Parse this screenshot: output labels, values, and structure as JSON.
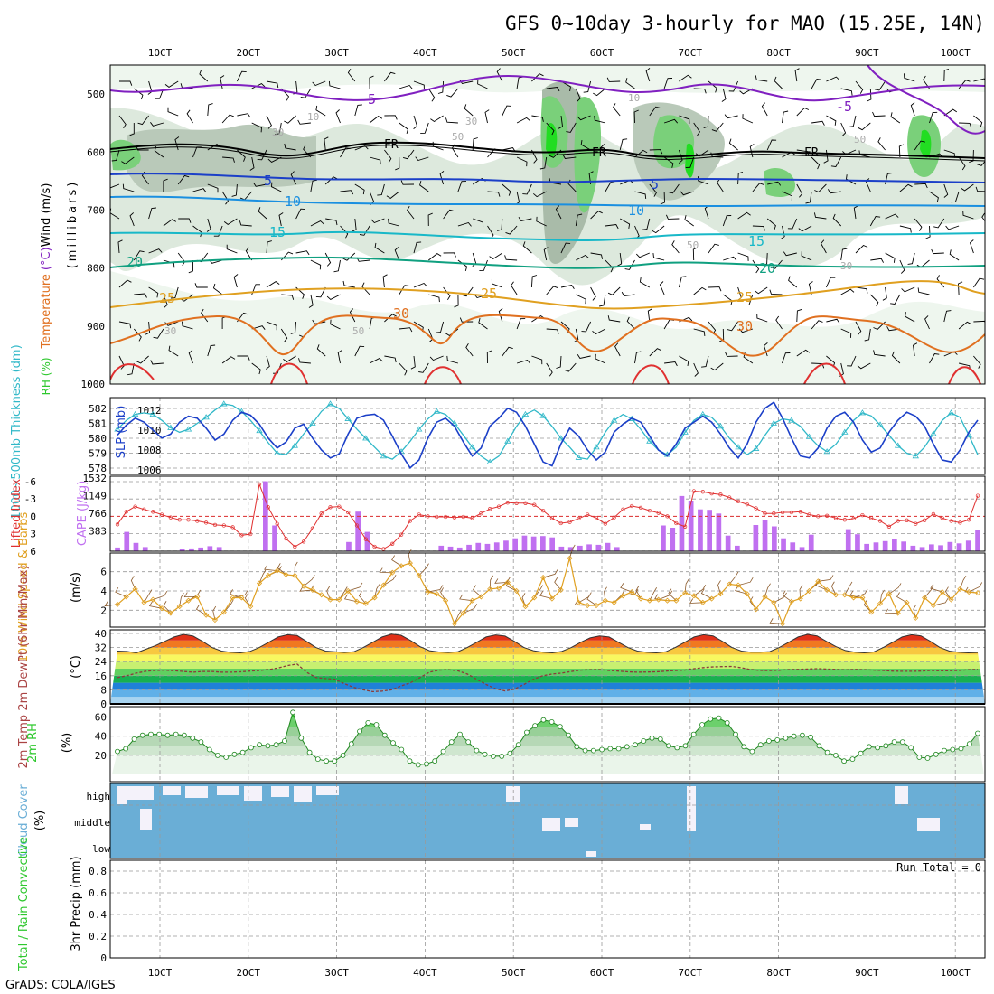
{
  "title": "GFS 0~10day 3-hourly for MAO (15.25E, 14N)",
  "credit": "GrADS: COLA/IGES",
  "time_axis": {
    "labels": [
      "1OCT",
      "2OCT",
      "3OCT",
      "4OCT",
      "5OCT",
      "6OCT",
      "7OCT",
      "8OCT",
      "9OCT",
      "10OCT"
    ]
  },
  "colors": {
    "temp_contour": "#e07020",
    "cold_contour": "#8020c0",
    "rh_shade": "#2ec82e",
    "cape": "#c070f0",
    "cloud": "#6aaed6",
    "slp": "#1b3fc8",
    "thickness": "#30b8c8"
  },
  "chart_data": [
    {
      "type": "heatmap",
      "panel": "upper-air",
      "ylabel": "(millibars)",
      "side_label_parts": [
        "RH (%)",
        "Temperature",
        "(°C)",
        "Wind (m/s)"
      ],
      "y_ticks": [
        "500",
        "600",
        "700",
        "800",
        "900",
        "1000"
      ],
      "ylim": [
        1000,
        450
      ],
      "temperature_contours": [
        {
          "label": "-5",
          "pressure": 510
        },
        {
          "label": "FR",
          "pressure": 610
        },
        {
          "label": "5",
          "pressure": 648
        },
        {
          "label": "10",
          "pressure": 688
        },
        {
          "label": "15",
          "pressure": 742
        },
        {
          "label": "20",
          "pressure": 790
        },
        {
          "label": "25",
          "pressure": 840
        },
        {
          "label": "30",
          "pressure": 885
        }
      ]
    },
    {
      "type": "line",
      "panel": "pressure",
      "ylabel_left": "1000~500mb Thickness (dm)",
      "ylabel_right": "SLP (mb)",
      "yticks_left": [
        "582",
        "581",
        "580",
        "579",
        "578"
      ],
      "yticks_right": [
        "1012",
        "1010",
        "1008",
        "1006"
      ],
      "series": [
        {
          "name": "SLP (mb)",
          "values": [
            1009.5,
            1010.5,
            1011.2,
            1010.8,
            1010,
            1009.2,
            1009.6,
            1010.8,
            1011.4,
            1011.2,
            1010.2,
            1009,
            1009.6,
            1011,
            1011.8,
            1011.5,
            1010.6,
            1009.2,
            1008.2,
            1008.8,
            1010.2,
            1010.6,
            1009.2,
            1008,
            1007.2,
            1007.6,
            1009.6,
            1011.2,
            1011.5,
            1011.6,
            1011,
            1009.4,
            1007.6,
            1006.2,
            1007,
            1009.2,
            1010.8,
            1011.2,
            1010.4,
            1008.8,
            1007.4,
            1008.2,
            1010.4,
            1011.2,
            1012.2,
            1011.8,
            1010.4,
            1008.6,
            1006.8,
            1006.4,
            1008.6,
            1010.2,
            1009.4,
            1008,
            1007,
            1007.8,
            1009.8,
            1010.6,
            1011.2,
            1010.8,
            1009.4,
            1008,
            1007.4,
            1008.6,
            1010.2,
            1010.8,
            1011.4,
            1010.8,
            1009.6,
            1008.2,
            1007.2,
            1008.6,
            1010.8,
            1012.2,
            1012.8,
            1011.2,
            1009.2,
            1007.4,
            1007.2,
            1008.2,
            1010.2,
            1011.4,
            1011.8,
            1010.8,
            1009,
            1007.8,
            1008.2,
            1009.8,
            1011,
            1011.8,
            1011.4,
            1010.4,
            1008.6,
            1007,
            1006.8,
            1008,
            1009.8,
            1011
          ]
        },
        {
          "name": "1000~500mb Thickness (dm)",
          "values": [
            580.6,
            581.2,
            581.6,
            581.7,
            581.6,
            581.2,
            580.7,
            580.4,
            580.6,
            581,
            581.4,
            581.9,
            582.3,
            582.2,
            581.8,
            581.2,
            580.5,
            579.7,
            579,
            578.9,
            579.5,
            580.3,
            581,
            581.8,
            582.3,
            582,
            581.3,
            580.6,
            580,
            579.4,
            578.8,
            578.6,
            579.1,
            579.8,
            580.6,
            581.3,
            581.8,
            581.6,
            581,
            580.2,
            579.4,
            578.8,
            578.4,
            578.8,
            579.8,
            580.8,
            581.6,
            581.9,
            581.5,
            580.8,
            580,
            579.4,
            578.7,
            578.6,
            579.4,
            580.4,
            581.2,
            581.6,
            581.3,
            580.6,
            579.8,
            579.2,
            578.9,
            579.4,
            580.4,
            581.2,
            581.6,
            581.4,
            580.8,
            580,
            579.4,
            578.9,
            579.3,
            580.2,
            581,
            581.3,
            581.2,
            580.8,
            580.1,
            579.5,
            579.1,
            579.6,
            580.4,
            581.2,
            581.7,
            581.5,
            580.9,
            580.2,
            579.5,
            579,
            578.8,
            579.4,
            580.3,
            581.2,
            581.7,
            581.4,
            580.2,
            578.9
          ]
        }
      ]
    },
    {
      "type": "bar",
      "panel": "instability",
      "ylabel_left": "Lifted Index",
      "ylabel_right": "CAPE (J/kg)",
      "yticks_left": [
        "-6",
        "-3",
        "0",
        "3",
        "6"
      ],
      "yticks_right": [
        "1532",
        "1149",
        "766",
        "383"
      ],
      "series": [
        {
          "name": "CAPE (J/kg)",
          "values": [
            80,
            420,
            180,
            90,
            0,
            0,
            0,
            40,
            60,
            80,
            110,
            90,
            0,
            0,
            0,
            0,
            1520,
            560,
            0,
            0,
            0,
            0,
            0,
            0,
            0,
            200,
            860,
            420,
            0,
            0,
            0,
            0,
            0,
            0,
            0,
            120,
            100,
            80,
            140,
            180,
            160,
            190,
            230,
            280,
            340,
            320,
            330,
            300,
            100,
            90,
            120,
            150,
            140,
            180,
            90,
            0,
            0,
            0,
            0,
            560,
            510,
            1200,
            1100,
            910,
            900,
            820,
            340,
            120,
            0,
            570,
            680,
            540,
            280,
            190,
            90,
            360,
            0,
            0,
            0,
            480,
            370,
            160,
            190,
            220,
            270,
            210,
            120,
            90,
            150,
            130,
            200,
            170,
            230,
            470
          ]
        },
        {
          "name": "Lifted Index",
          "values": [
            1.4,
            -0.8,
            -1.7,
            -1.2,
            -0.8,
            -0.3,
            0.2,
            0.6,
            0.6,
            0.8,
            1.1,
            1.5,
            1.6,
            1.9,
            3.3,
            3.1,
            -5.6,
            -1.6,
            1.3,
            3.9,
            5.3,
            4.4,
            2.1,
            -0.5,
            -1.6,
            -1.7,
            -0.7,
            1.6,
            4,
            5.3,
            5.7,
            4.8,
            3.2,
            0.8,
            -0.3,
            0,
            0.1,
            0.1,
            0.2,
            0.1,
            0.3,
            -0.5,
            -1.3,
            -1.7,
            -2.4,
            -2.3,
            -2.3,
            -2,
            -1,
            0.3,
            1.2,
            1,
            0.4,
            -0.3,
            0.3,
            1.3,
            0.2,
            -1.2,
            -1.8,
            -1.5,
            -1,
            -0.6,
            0,
            1.2,
            1.8,
            -4.4,
            -4.3,
            -4,
            -3.8,
            -3.3,
            -2.6,
            -2.1,
            -1.4,
            -0.5,
            -0.5,
            -0.7,
            -0.7,
            -0.8,
            -0.3,
            0,
            -0.1,
            0.3,
            0.6,
            0.4,
            -0.2,
            0.3,
            0.8,
            1.8,
            0.8,
            0.7,
            1.3,
            0.7,
            -0.4,
            0.3,
            0.8,
            1.1,
            0.6,
            -3.6
          ]
        }
      ]
    },
    {
      "type": "line",
      "panel": "wind10m",
      "ylabel_left": "10m Wind Speed & Barbs",
      "ylabel_right": "(m/s)",
      "yticks": [
        "6",
        "4",
        "2"
      ],
      "series": [
        {
          "name": "10m Wind Speed",
          "values": [
            2.6,
            3.4,
            4.2,
            2.8,
            3.1,
            2.2,
            1.7,
            2.4,
            3,
            3.4,
            1.5,
            1,
            1.8,
            3.3,
            3.3,
            2.4,
            4.8,
            5.6,
            6.1,
            5.7,
            5.6,
            4.5,
            4.1,
            3.6,
            3.1,
            3.1,
            4,
            2.9,
            2.7,
            3.3,
            4.6,
            5.9,
            6.6,
            6.9,
            5.6,
            3.9,
            3.7,
            3,
            0.6,
            1.7,
            3,
            3.4,
            4.2,
            4.3,
            4.9,
            4,
            2.4,
            3.3,
            5.4,
            3.2,
            4.1,
            7.4,
            2.8,
            2.5,
            2.5,
            3,
            2.8,
            3.5,
            3.9,
            3.2,
            3,
            3.1,
            3,
            3,
            3.8,
            3.5,
            2.8,
            3.2,
            3.7,
            4.7,
            4.6,
            3.7,
            2.1,
            3.4,
            2.8,
            0.6,
            2.9,
            3.2,
            4,
            5,
            4.1,
            3.6,
            3.6,
            3.3,
            3.3,
            1.8,
            2.7,
            3.7,
            1.7,
            2.8,
            1.2,
            3.3,
            2.5,
            3.9,
            3.1,
            4.2,
            3.9,
            3.8
          ]
        }
      ]
    },
    {
      "type": "area",
      "panel": "temperature2m",
      "ylabel_left": "2m Temp 2m DewPt (6hr Min/Max)",
      "ylabel_right": "(°C)",
      "yticks": [
        "40",
        "32",
        "24",
        "16",
        "8",
        "0"
      ],
      "series": [
        {
          "name": "2m Temp",
          "values": [
            30,
            29.8,
            29,
            31,
            33,
            35.5,
            38,
            39.5,
            38.5,
            35.5,
            32,
            30,
            29.3,
            29,
            29.8,
            32,
            35,
            38,
            39.3,
            38.8,
            35.5,
            32,
            30,
            29.6,
            29.2,
            29.6,
            32,
            35,
            38,
            39.6,
            39,
            36,
            32.5,
            30.2,
            29.5,
            29.2,
            29.6,
            32,
            35,
            38,
            39.2,
            38.5,
            35.5,
            32,
            30.2,
            29.4,
            29,
            29.8,
            32,
            35,
            37.5,
            38.6,
            38,
            35,
            32,
            30,
            29.3,
            29,
            29.6,
            32,
            35,
            38,
            39.3,
            38.6,
            35.5,
            32,
            30,
            29.4,
            29.4,
            29.7,
            32,
            35,
            38,
            39.5,
            38.6,
            35.5,
            32.5,
            30.3,
            29.4,
            29,
            29.5,
            32,
            35,
            38,
            39.3,
            38.6,
            35.5,
            32,
            30,
            29.3,
            29,
            29.2
          ]
        },
        {
          "name": "2m DewPt",
          "values": [
            15,
            16,
            17.5,
            18.5,
            19,
            19.2,
            18.8,
            18.4,
            18,
            18.4,
            18.4,
            18,
            18,
            18.2,
            18.6,
            19,
            19.5,
            20.4,
            21.8,
            22.6,
            18,
            15,
            14.4,
            14,
            11.5,
            9.4,
            8,
            7,
            7.3,
            8,
            10.2,
            12,
            15,
            18,
            19.2,
            19.4,
            18.8,
            17,
            14,
            11,
            8.6,
            7.4,
            8.4,
            11,
            14,
            16,
            17,
            17.5,
            18.4,
            19.2,
            19.4,
            19.5,
            19,
            18.6,
            18.2,
            18,
            18.1,
            18.2,
            18.6,
            18.9,
            19.2,
            20,
            20.6,
            21,
            21.2,
            21.3,
            20.5,
            19.5,
            19,
            18.9,
            19.1,
            19.5,
            19.6,
            19.8,
            20,
            19.8,
            19.6,
            19.3,
            19.6,
            19.4,
            19.2,
            19,
            18.6,
            18.5,
            18.5,
            18.6,
            19,
            18.8,
            18.8,
            19,
            19.4,
            19.6
          ]
        }
      ]
    },
    {
      "type": "area",
      "panel": "rh2m",
      "ylabel_left": "2m RH",
      "ylabel_right": "(%)",
      "yticks": [
        "60",
        "40",
        "20"
      ],
      "series": [
        {
          "name": "2m RH",
          "values": [
            24,
            27,
            37,
            41,
            42,
            42,
            41,
            42,
            41,
            38,
            34,
            26,
            20,
            18,
            21,
            23,
            28,
            31,
            30,
            31,
            35,
            65,
            38,
            23,
            16,
            14,
            14,
            20,
            32,
            45,
            54,
            52,
            41,
            33,
            26,
            14,
            10,
            11,
            14,
            24,
            34,
            42,
            34,
            25,
            21,
            19,
            19,
            22,
            31,
            44,
            51,
            57,
            55,
            50,
            41,
            29,
            25,
            25,
            26,
            27,
            27,
            29,
            31,
            35,
            38,
            37,
            30,
            28,
            30,
            42,
            52,
            58,
            59,
            54,
            42,
            29,
            24,
            31,
            35,
            36,
            38,
            40,
            41,
            39,
            30,
            23,
            20,
            14,
            16,
            22,
            29,
            28,
            30,
            34,
            34,
            28,
            18,
            17,
            21,
            25,
            26,
            27,
            32,
            43
          ]
        }
      ]
    },
    {
      "type": "heatmap",
      "panel": "cloud",
      "ylabel_left": "Cloud Cover",
      "ylabel_right": "(%)",
      "layers": [
        "high",
        "middle",
        "low"
      ]
    },
    {
      "type": "bar",
      "panel": "precip",
      "ylabel_left": "Total / Rain Convective",
      "ylabel_right": "3hr Precip (mm)",
      "yticks": [
        "0.8",
        "0.6",
        "0.4",
        "0.2",
        "0"
      ],
      "annotation": "Run Total = 0"
    }
  ]
}
